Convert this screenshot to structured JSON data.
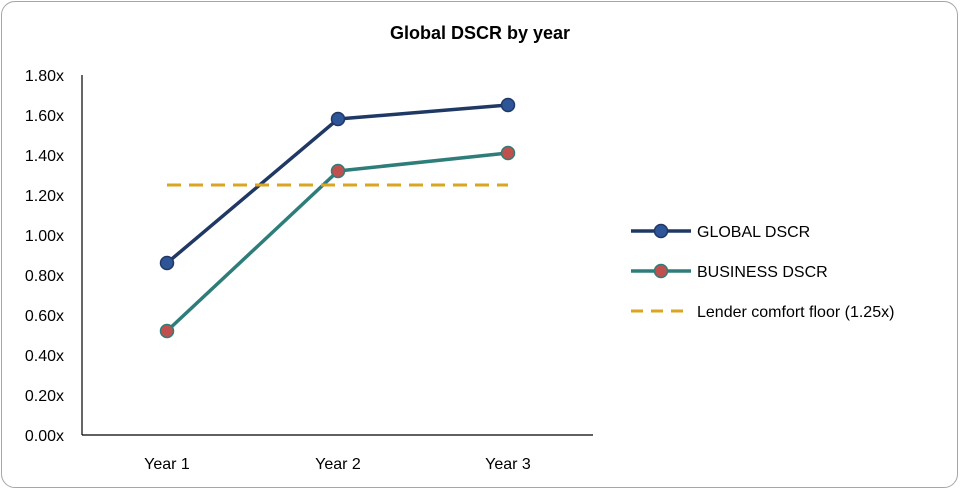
{
  "chart_data": {
    "type": "line",
    "title": "Global DSCR by year",
    "xlabel": "",
    "ylabel": "",
    "categories": [
      "Year 1",
      "Year 2",
      "Year 3"
    ],
    "ylim": [
      0,
      1.8
    ],
    "y_ticks": [
      "0.00x",
      "0.20x",
      "0.40x",
      "0.60x",
      "0.80x",
      "1.00x",
      "1.20x",
      "1.40x",
      "1.60x",
      "1.80x"
    ],
    "grid": false,
    "legend_position": "right",
    "series": [
      {
        "name": "GLOBAL DSCR",
        "values": [
          0.86,
          1.58,
          1.65
        ],
        "color": "#1f3864",
        "marker_fill": "#2e5597",
        "style": "solid"
      },
      {
        "name": "BUSINESS DSCR",
        "values": [
          0.52,
          1.32,
          1.41
        ],
        "color": "#2e7d7a",
        "marker_fill": "#c0504d",
        "style": "solid"
      },
      {
        "name": "Lender comfort floor (1.25x)",
        "values": [
          1.25,
          1.25,
          1.25
        ],
        "color": "#daa520",
        "style": "dashed"
      }
    ]
  }
}
